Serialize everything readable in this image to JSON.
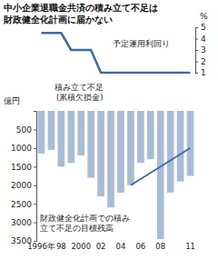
{
  "chart_data": [
    {
      "type": "line",
      "title": "中小企業退職金共済の積み立て不足は財政健全化計画に届かない",
      "x": [
        1996,
        1998,
        1999,
        2001,
        2002,
        2011
      ],
      "series": [
        {
          "name": "予定運用利回り",
          "color": "#3d6aa8",
          "values": [
            4.5,
            4.5,
            3,
            3,
            1,
            1
          ]
        }
      ],
      "xlim": [
        1995.5,
        2011.5
      ],
      "ylim": [
        1,
        5
      ],
      "yticks": [
        1,
        2,
        3,
        4,
        5
      ],
      "ylabel": "%",
      "tick_labels": "y",
      "grid": false
    },
    {
      "type": "bar",
      "categories": [
        "1996年",
        null,
        "98",
        null,
        "2000",
        null,
        "02",
        null,
        "04",
        null,
        "06",
        null,
        "08",
        null,
        null,
        "11"
      ],
      "series": [
        {
          "name": "積み立て不足",
          "type": "bar",
          "color": "#a9bcd6",
          "values": [
            1150,
            1050,
            1500,
            1400,
            1200,
            1800,
            2300,
            2600,
            2200,
            2000,
            1400,
            1300,
            3450,
            2200,
            1900,
            1750
          ]
        },
        {
          "name": "財政健全化計画での積み立て不足の目標残高",
          "type": "line",
          "color": "#3d6aa8",
          "x": [
            2005,
            2011
          ],
          "values": [
            2000,
            1000
          ]
        }
      ],
      "annotations": [
        "(累積欠損金)"
      ],
      "xlim": [
        1995.5,
        2011.5
      ],
      "ylabel": "億円",
      "ylim": [
        0,
        3500
      ],
      "yticks": [
        500,
        1000,
        1500,
        2000,
        2500,
        3000,
        3500
      ],
      "grid": false
    }
  ]
}
